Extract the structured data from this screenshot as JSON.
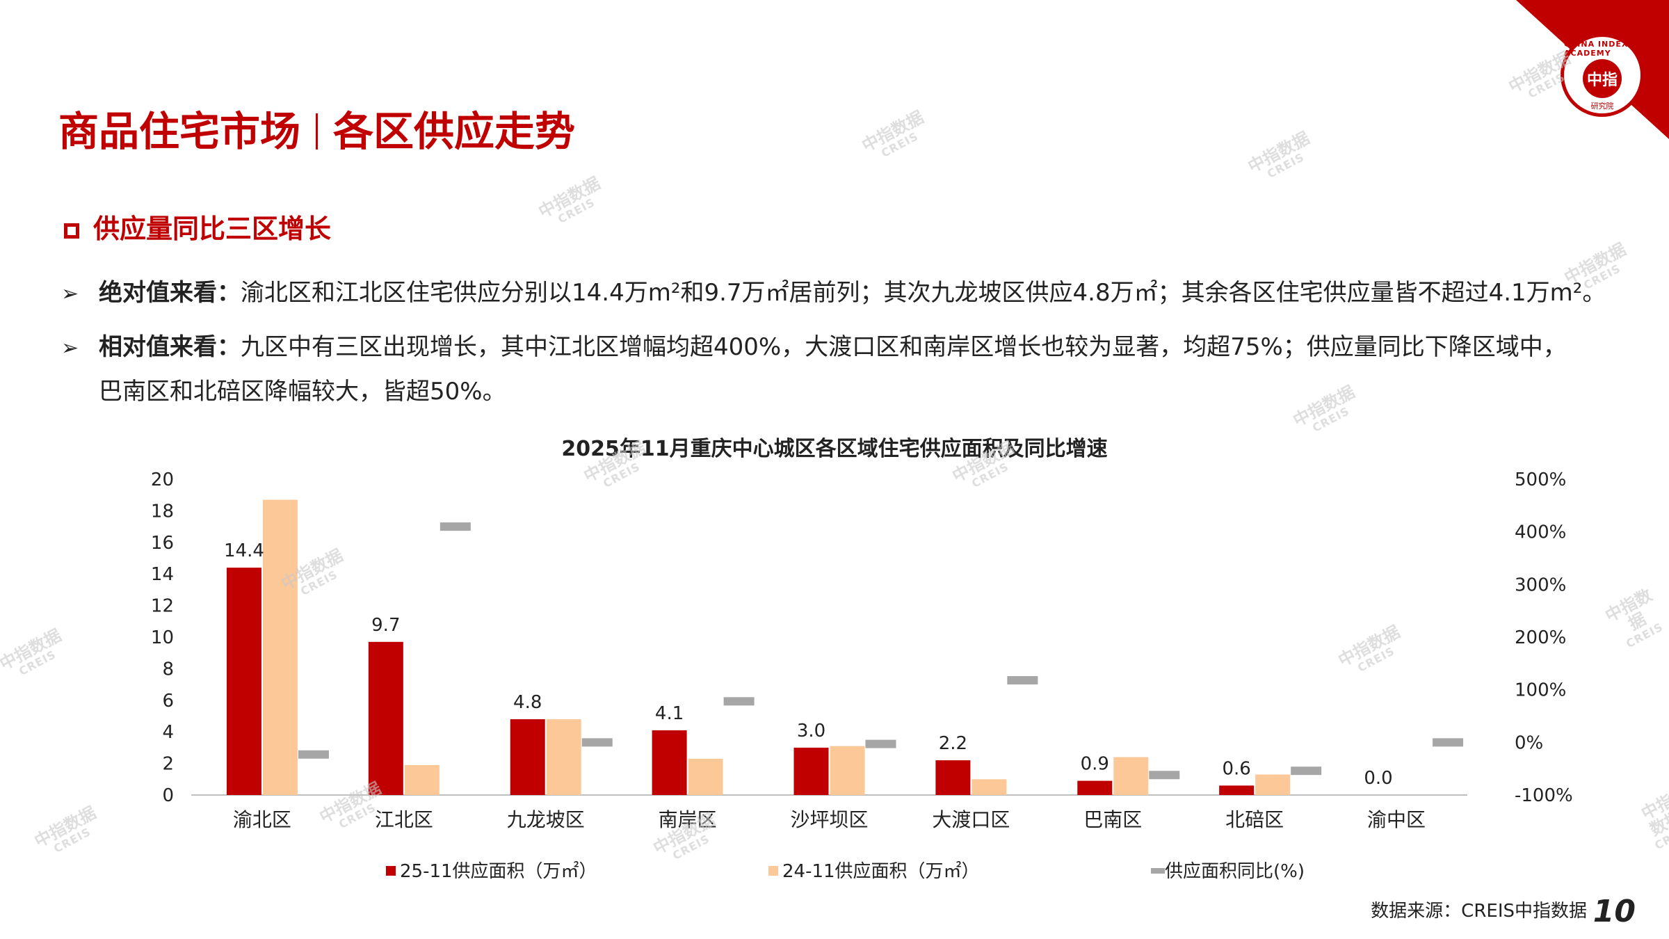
{
  "header": {
    "title_left": "商品住宅市场",
    "title_right": "各区供应走势"
  },
  "section": {
    "subtitle": "供应量同比三区增长"
  },
  "bullets": [
    {
      "label": "绝对值来看：",
      "text": "渝北区和江北区住宅供应分别以14.4万m²和9.7万㎡居前列；其次九龙坡区供应4.8万㎡；其余各区住宅供应量皆不超过4.1万m²。"
    },
    {
      "label": "相对值来看：",
      "text": "九区中有三区出现增长，其中江北区增幅均超400%，大渡口区和南岸区增长也较为显著，均超75%；供应量同比下降区域中，",
      "text2": "巴南区和北碚区降幅较大，皆超50%。"
    }
  ],
  "logo": {
    "top": "CHINA INDEX ACADEMY",
    "mid": "中指",
    "bot": "研究院"
  },
  "watermark": {
    "cn": "中指数据",
    "en": "CREIS"
  },
  "footer": {
    "source": "数据来源：CREIS中指数据",
    "page": "10"
  },
  "colors": {
    "brand": "#c00000",
    "series_2025": "#c00000",
    "series_2024": "#fcc897",
    "series_yoy": "#a6a6a6"
  },
  "chart_data": {
    "type": "bar",
    "title": "2025年11月重庆中心城区各区域住宅供应面积及同比增速",
    "categories": [
      "渝北区",
      "江北区",
      "九龙坡区",
      "南岸区",
      "沙坪坝区",
      "大渡口区",
      "巴南区",
      "北碚区",
      "渝中区"
    ],
    "series": [
      {
        "name": "25-11供应面积（万㎡）",
        "axis": "left",
        "kind": "bar",
        "values": [
          14.4,
          9.7,
          4.8,
          4.1,
          3.0,
          2.2,
          0.9,
          0.6,
          0.0
        ],
        "labels": [
          "14.4",
          "9.7",
          "4.8",
          "4.1",
          "3.0",
          "2.2",
          "0.9",
          "0.6",
          "0.0"
        ]
      },
      {
        "name": "24-11供应面积（万㎡）",
        "axis": "left",
        "kind": "bar",
        "values": [
          18.7,
          1.9,
          4.8,
          2.3,
          3.1,
          1.0,
          2.4,
          1.3,
          0.0
        ]
      },
      {
        "name": "供应面积同比(%)",
        "axis": "right",
        "kind": "marker",
        "values": [
          -23,
          410,
          0,
          78,
          -3,
          118,
          -62,
          -54,
          0
        ]
      }
    ],
    "y_left": {
      "min": 0,
      "max": 20,
      "ticks": [
        "0",
        "2",
        "4",
        "6",
        "8",
        "10",
        "12",
        "14",
        "16",
        "18",
        "20"
      ]
    },
    "y_right": {
      "min": -100,
      "max": 500,
      "ticks": [
        "-100%",
        "0%",
        "100%",
        "200%",
        "300%",
        "400%",
        "500%"
      ]
    },
    "grid": false,
    "legend": "bottom"
  }
}
